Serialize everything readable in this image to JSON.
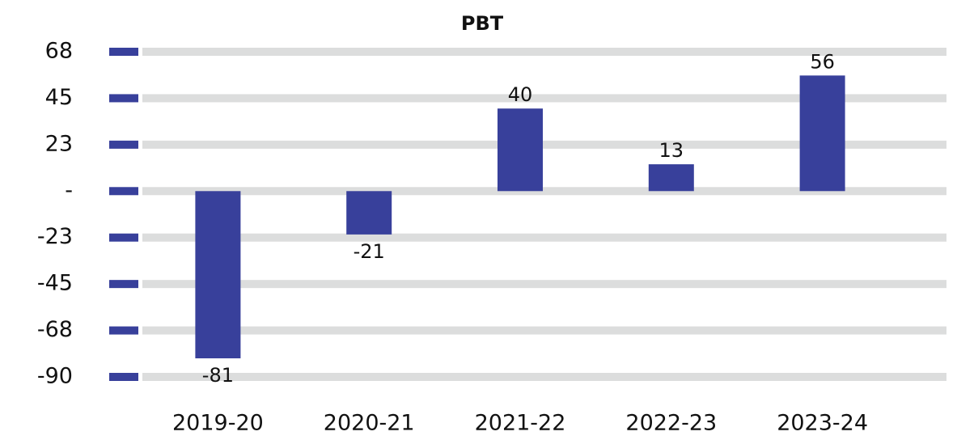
{
  "chart_data": {
    "type": "bar",
    "title": "PBT",
    "categories": [
      "2019-20",
      "2020-21",
      "2021-22",
      "2022-23",
      "2023-24"
    ],
    "values": [
      -81,
      -21,
      40,
      13,
      56
    ],
    "color": "#38409b",
    "ylim": [
      -90,
      67.5
    ],
    "yticks": [
      -90,
      {
        "value": -67.5,
        "label": "-68"
      },
      -45,
      {
        "value": -22.5,
        "label": "-23"
      },
      {
        "value": 0,
        "label": "-"
      },
      {
        "value": 22.5,
        "label": "23"
      },
      45,
      {
        "value": 67.5,
        "label": "68"
      }
    ],
    "grid": true
  }
}
